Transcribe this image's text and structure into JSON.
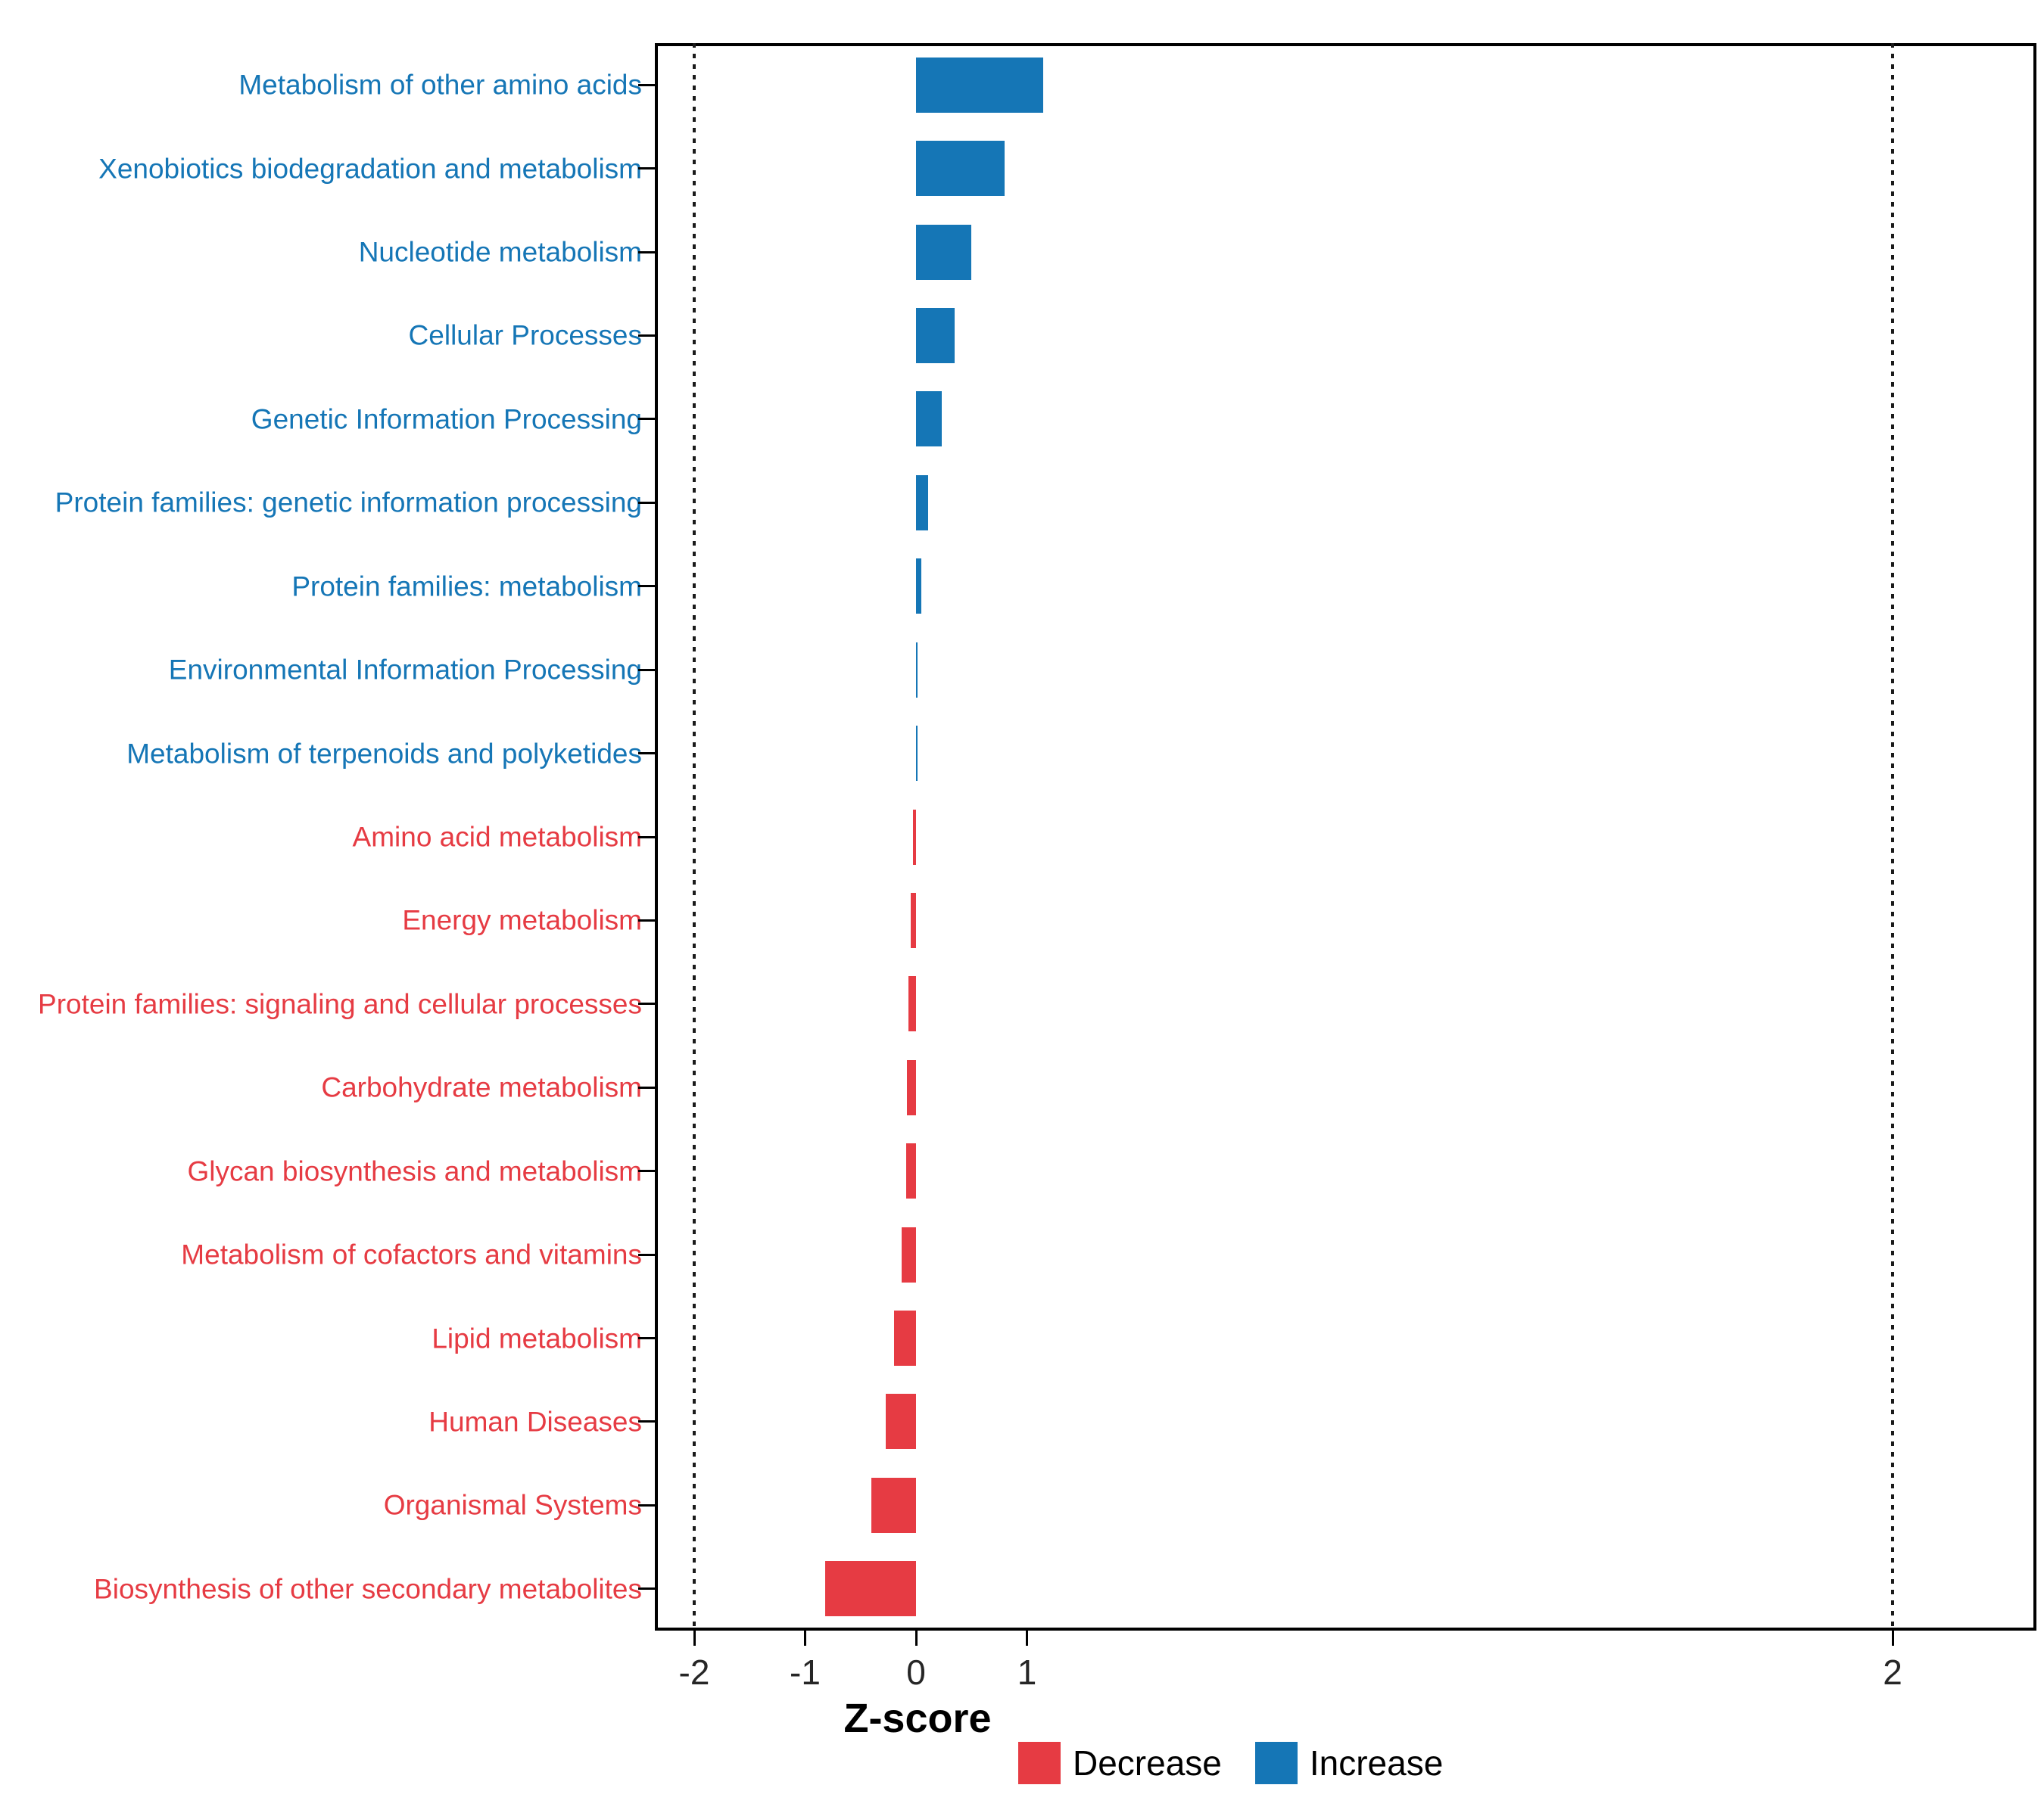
{
  "colors": {
    "increase": "#1576b6",
    "decrease": "#e63b43",
    "tick_label": "#262626",
    "axis_title": "#000000",
    "panel_border": "#000000",
    "threshold_line": "#1a1a1a"
  },
  "chart_data": {
    "type": "bar",
    "orientation": "horizontal",
    "title": "",
    "xlabel": "Z-score",
    "ylabel": "",
    "grid": "off",
    "legend_position": "bottom-right",
    "x_ticks": [
      -2,
      -1,
      0,
      1,
      2
    ],
    "x_tick_labels": [
      "-2",
      "-1",
      "0",
      "1",
      "2"
    ],
    "threshold_lines": [
      -2,
      2
    ],
    "categories": [
      "Metabolism of other amino acids",
      "Xenobiotics biodegradation and metabolism",
      "Nucleotide metabolism",
      "Cellular Processes",
      "Genetic Information Processing",
      "Protein families: genetic information processing",
      "Protein families: metabolism",
      "Environmental Information Processing",
      "Metabolism of terpenoids and polyketides",
      "Amino acid metabolism",
      "Energy metabolism",
      "Protein families: signaling and cellular processes",
      "Carbohydrate metabolism",
      "Glycan biosynthesis and metabolism",
      "Metabolism of cofactors and vitamins",
      "Lipid metabolism",
      "Human Diseases",
      "Organismal Systems",
      "Biosynthesis of other secondary metabolites"
    ],
    "values": [
      1.15,
      0.8,
      0.5,
      0.35,
      0.23,
      0.11,
      0.045,
      0.015,
      0.005,
      -0.03,
      -0.05,
      -0.07,
      -0.08,
      -0.09,
      -0.13,
      -0.2,
      -0.27,
      -0.4,
      -0.82
    ],
    "directions": [
      "increase",
      "increase",
      "increase",
      "increase",
      "increase",
      "increase",
      "increase",
      "increase",
      "increase",
      "decrease",
      "decrease",
      "decrease",
      "decrease",
      "decrease",
      "decrease",
      "decrease",
      "decrease",
      "decrease",
      "decrease"
    ],
    "legend": [
      {
        "label": "Decrease",
        "key": "decrease"
      },
      {
        "label": "Increase",
        "key": "increase"
      }
    ]
  }
}
